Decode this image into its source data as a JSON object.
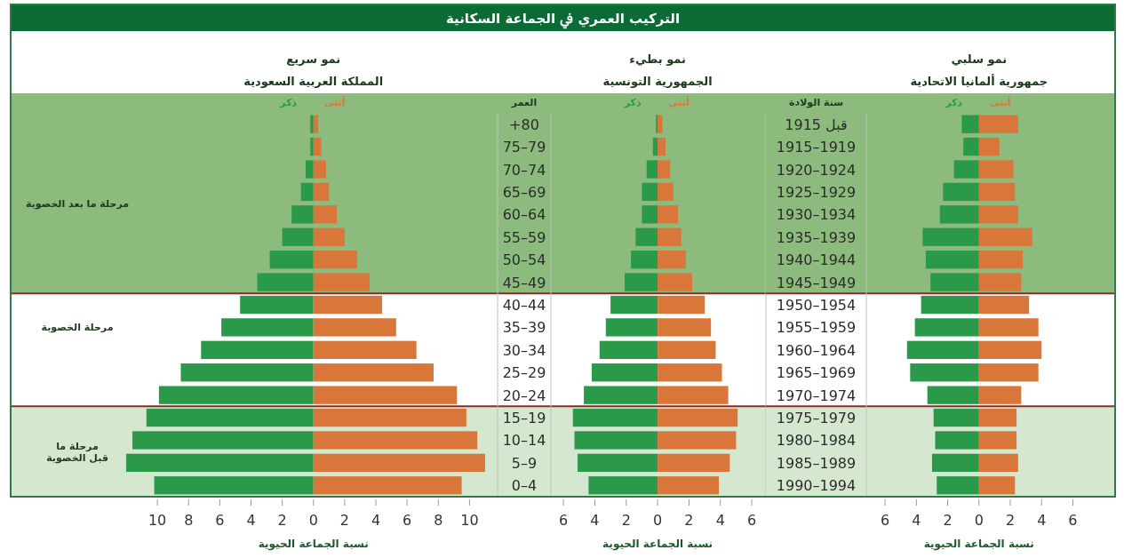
{
  "chart_data": [
    {
      "type": "bar",
      "orientation": "horizontal",
      "title": "نمو سريع",
      "subtitle": "المملكة العربية السعودية",
      "xlabel": "نسبة الجماعة الحيوية",
      "ylabel": "العمر",
      "annotations": [
        "التركيب العمري ﰲ الجماعة السكانية",
        "مرحلة الخصوبة"
      ],
      "stacked": true,
      "categories": [
        "+80",
        "75–79",
        "70–74",
        "65–69",
        "60–64",
        "55–59",
        "50–54",
        "45–49",
        "40–44",
        "35–39",
        "30–34",
        "25–29",
        "20–24",
        "15–19",
        "10–14",
        "5–9",
        "0–4"
      ],
      "series": [
        {
          "name": "ذكر",
          "color": "#2a9a4a",
          "values": [
            -0.2,
            -0.2,
            -0.5,
            -0.8,
            -1.4,
            -2.0,
            -2.8,
            -3.6,
            -4.7,
            -5.9,
            -7.2,
            -8.5,
            -9.9,
            -10.7,
            -11.6,
            -12.0,
            -10.2
          ]
        },
        {
          "name": "أنثى",
          "color": "#d9773a",
          "values": [
            0.3,
            0.5,
            0.8,
            1.0,
            1.5,
            2.0,
            2.8,
            3.6,
            4.4,
            5.3,
            6.6,
            7.7,
            9.2,
            9.8,
            10.5,
            11.0,
            9.5
          ]
        }
      ],
      "xlim": [
        -19.4,
        11.8
      ],
      "xticks": [
        {
          "value": -10,
          "label": "10"
        },
        {
          "value": -8,
          "label": "8"
        },
        {
          "value": -6,
          "label": "6"
        },
        {
          "value": -4,
          "label": "4"
        },
        {
          "value": -2,
          "label": "2"
        },
        0,
        2,
        4,
        6,
        8,
        10
      ],
      "bands": [
        {
          "axis": "y",
          "from": "+80",
          "to": "45–49",
          "label": "مرحلة ما بعد الخصوبة",
          "color": "#8dbb7e"
        },
        {
          "axis": "y",
          "from": "15–19",
          "to": "0–4",
          "label": "مرحلة ما\nقبل الخصوبة",
          "color": "#d5e8cf"
        }
      ]
    },
    {
      "type": "bar",
      "orientation": "horizontal",
      "title": "نمو بطيء",
      "subtitle": "الجمهورية التونسية",
      "xlabel": "نسبة الجماعة الحيوية",
      "tick_labels": "x",
      "stacked": true,
      "categories": [
        "+80",
        "75–79",
        "70–74",
        "65–69",
        "60–64",
        "55–59",
        "50–54",
        "45–49",
        "40–44",
        "35–39",
        "30–34",
        "25–29",
        "20–24",
        "15–19",
        "10–14",
        "5–9",
        "0–4"
      ],
      "series": [
        {
          "name": "ذكر",
          "color": "#2a9a4a",
          "values": [
            -0.1,
            -0.3,
            -0.7,
            -1.0,
            -1.0,
            -1.4,
            -1.7,
            -2.1,
            -3.0,
            -3.3,
            -3.7,
            -4.2,
            -4.7,
            -5.4,
            -5.3,
            -5.1,
            -4.4
          ]
        },
        {
          "name": "أنثى",
          "color": "#d9773a",
          "values": [
            0.3,
            0.5,
            0.8,
            1.0,
            1.3,
            1.5,
            1.8,
            2.2,
            3.0,
            3.4,
            3.7,
            4.1,
            4.5,
            5.1,
            5.0,
            4.6,
            3.9
          ]
        }
      ],
      "xlim": [
        -6.8,
        6.9
      ],
      "xticks": [
        {
          "value": -6,
          "label": "6"
        },
        {
          "value": -4,
          "label": "4"
        },
        {
          "value": -2,
          "label": "2"
        },
        0,
        2,
        4,
        6
      ],
      "bands": [
        {
          "axis": "y",
          "from": "+80",
          "to": "45–49",
          "color": "#8dbb7e"
        },
        {
          "axis": "y",
          "from": "15–19",
          "to": "0–4",
          "color": "#d5e8cf"
        }
      ]
    },
    {
      "type": "bar",
      "orientation": "horizontal",
      "title": "نمو سلبي",
      "subtitle": "جمهورية ألمانيا الاتحادية",
      "xlabel": "نسبة الجماعة الحيوية",
      "ylabel": "سنة الولادة",
      "stacked": true,
      "categories": [
        "قبل 1915",
        "1915–1919",
        "1920–1924",
        "1925–1929",
        "1930–1934",
        "1935–1939",
        "1940–1944",
        "1945–1949",
        "1950–1954",
        "1955–1959",
        "1960–1964",
        "1965–1969",
        "1970–1974",
        "1975–1979",
        "1980–1984",
        "1985–1989",
        "1990–1994"
      ],
      "series": [
        {
          "name": "ذكر",
          "color": "#2a9a4a",
          "values": [
            -1.1,
            -1.0,
            -1.6,
            -2.3,
            -2.5,
            -3.6,
            -3.4,
            -3.1,
            -3.7,
            -4.1,
            -4.6,
            -4.4,
            -3.3,
            -2.9,
            -2.8,
            -3.0,
            -2.7
          ]
        },
        {
          "name": "أنثى",
          "color": "#d9773a",
          "values": [
            2.5,
            1.3,
            2.2,
            2.3,
            2.5,
            3.4,
            2.8,
            2.7,
            3.2,
            3.8,
            4.0,
            3.8,
            2.7,
            2.4,
            2.4,
            2.5,
            2.3
          ]
        }
      ],
      "xlim": [
        -7.2,
        8.7
      ],
      "xticks": [
        {
          "value": -6,
          "label": "6"
        },
        {
          "value": -4,
          "label": "4"
        },
        {
          "value": -2,
          "label": "2"
        },
        0,
        2,
        4,
        6
      ],
      "bands": [
        {
          "axis": "y",
          "from": "قبل 1915",
          "to": "1945–1949",
          "color": "#8dbb7e"
        },
        {
          "axis": "y",
          "from": "1975–1979",
          "to": "1990–1994",
          "color": "#d5e8cf"
        }
      ]
    }
  ]
}
